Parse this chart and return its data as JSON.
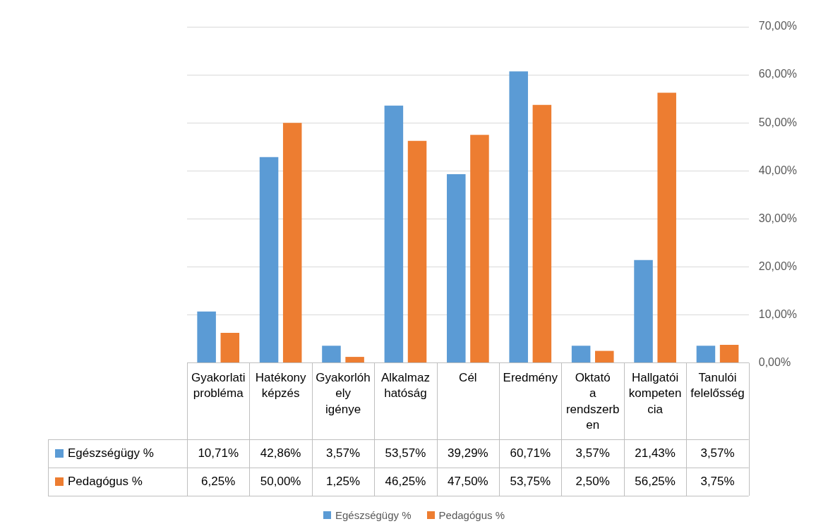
{
  "chart_data": {
    "type": "bar",
    "categories": [
      "Gyakorlati probléma",
      "Hatékony képzés",
      "Gyakorlóhely igénye",
      "Alkalmazhatóság",
      "Cél",
      "Eredmény",
      "Oktató a rendszerben",
      "Hallgatói kompetencia",
      "Tanulói felelősség"
    ],
    "series": [
      {
        "name": "Egészségügy %",
        "color": "#5b9bd5",
        "values": [
          10.71,
          42.86,
          3.57,
          53.57,
          39.29,
          60.71,
          3.57,
          21.43,
          3.57
        ],
        "value_labels": [
          "10,71%",
          "42,86%",
          "3,57%",
          "53,57%",
          "39,29%",
          "60,71%",
          "3,57%",
          "21,43%",
          "3,57%"
        ]
      },
      {
        "name": "Pedagógus %",
        "color": "#ed7d31",
        "values": [
          6.25,
          50.0,
          1.25,
          46.25,
          47.5,
          53.75,
          2.5,
          56.25,
          3.75
        ],
        "value_labels": [
          "6,25%",
          "50,00%",
          "1,25%",
          "46,25%",
          "47,50%",
          "53,75%",
          "2,50%",
          "56,25%",
          "3,75%"
        ]
      }
    ],
    "ylim": [
      0,
      70
    ],
    "yticks": [
      {
        "value": 0,
        "label": "0,00%"
      },
      {
        "value": 10,
        "label": "10,00%"
      },
      {
        "value": 20,
        "label": "20,00%"
      },
      {
        "value": 30,
        "label": "30,00%"
      },
      {
        "value": 40,
        "label": "40,00%"
      },
      {
        "value": 50,
        "label": "50,00%"
      },
      {
        "value": 60,
        "label": "60,00%"
      },
      {
        "value": 70,
        "label": "70,00%"
      }
    ],
    "grid": "y",
    "legend": "bottom"
  }
}
